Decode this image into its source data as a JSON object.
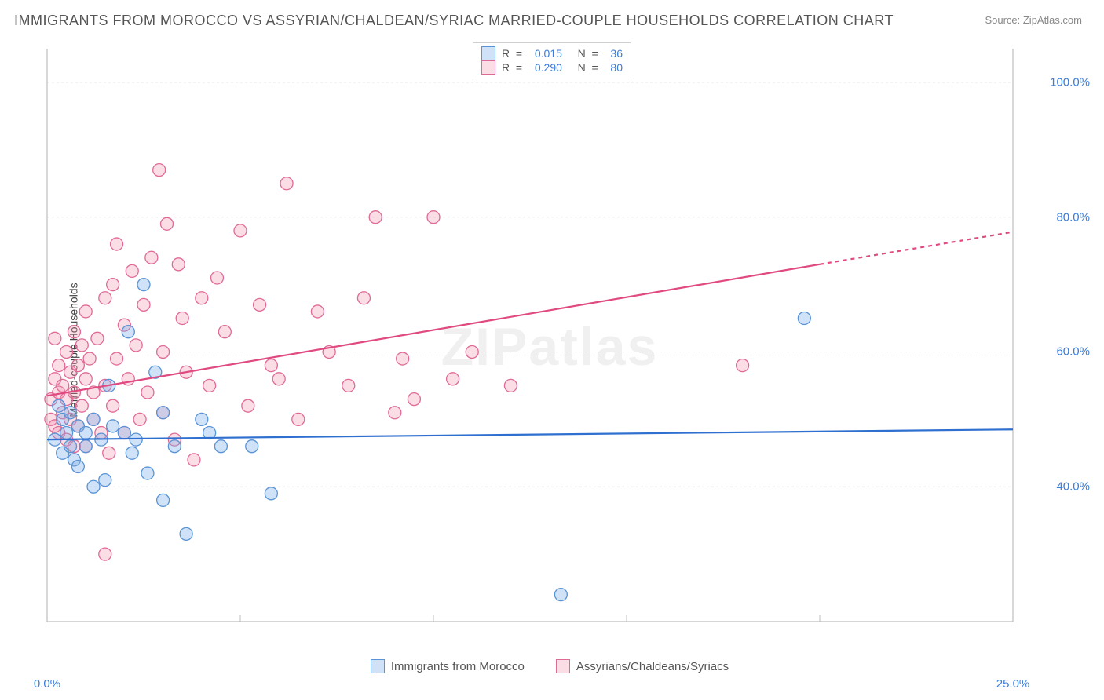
{
  "title": "IMMIGRANTS FROM MOROCCO VS ASSYRIAN/CHALDEAN/SYRIAC MARRIED-COUPLE HOUSEHOLDS CORRELATION CHART",
  "source_label": "Source: ",
  "source_name": "ZipAtlas.com",
  "watermark": "ZIPatlas",
  "ylabel": "Married-couple Households",
  "chart": {
    "type": "scatter",
    "xlim": [
      0,
      25
    ],
    "ylim": [
      20,
      105
    ],
    "xtick_labels": [
      "0.0%",
      "25.0%"
    ],
    "xtick_positions": [
      0,
      25
    ],
    "xtick_minor": [
      5,
      10,
      15,
      20
    ],
    "ytick_labels": [
      "40.0%",
      "60.0%",
      "80.0%",
      "100.0%"
    ],
    "ytick_positions": [
      40,
      60,
      80,
      100
    ],
    "grid_color": "#e5e5e5",
    "axis_color": "#bdbdbd",
    "background_color": "#ffffff",
    "tick_label_color": "#3b7dd8",
    "series": [
      {
        "name": "Immigrants from Morocco",
        "color_fill": "rgba(119,171,232,0.35)",
        "color_stroke": "#5a94d6",
        "line_color": "#2e6fd0",
        "line_width": 2.2,
        "marker_r": 8,
        "R": "0.015",
        "N": "36",
        "trend": {
          "x1": 0,
          "y1": 47.0,
          "x2": 25,
          "y2": 48.5
        },
        "points": [
          [
            0.2,
            47
          ],
          [
            0.3,
            52
          ],
          [
            0.4,
            45
          ],
          [
            0.4,
            50
          ],
          [
            0.5,
            48
          ],
          [
            0.6,
            46
          ],
          [
            0.6,
            51
          ],
          [
            0.7,
            44
          ],
          [
            0.8,
            49
          ],
          [
            0.8,
            43
          ],
          [
            1.0,
            48
          ],
          [
            1.0,
            46
          ],
          [
            1.2,
            50
          ],
          [
            1.2,
            40
          ],
          [
            1.4,
            47
          ],
          [
            1.5,
            41
          ],
          [
            1.6,
            55
          ],
          [
            1.7,
            49
          ],
          [
            2.0,
            48
          ],
          [
            2.1,
            63
          ],
          [
            2.2,
            45
          ],
          [
            2.3,
            47
          ],
          [
            2.5,
            70
          ],
          [
            2.6,
            42
          ],
          [
            2.8,
            57
          ],
          [
            3.0,
            51
          ],
          [
            3.0,
            38
          ],
          [
            3.3,
            46
          ],
          [
            3.6,
            33
          ],
          [
            4.0,
            50
          ],
          [
            4.2,
            48
          ],
          [
            4.5,
            46
          ],
          [
            5.3,
            46
          ],
          [
            5.8,
            39
          ],
          [
            13.3,
            24
          ],
          [
            19.6,
            65
          ]
        ]
      },
      {
        "name": "Assyrians/Chaldeans/Syriacs",
        "color_fill": "rgba(242,142,173,0.3)",
        "color_stroke": "#e06a96",
        "line_color": "#e04a80",
        "line_width": 2.2,
        "marker_r": 8,
        "R": "0.290",
        "N": "80",
        "trend": {
          "x1": 0,
          "y1": 53.5,
          "x2": 20,
          "y2": 73.0,
          "x_dash_from": 20,
          "x2_full": 25,
          "y2_full": 77.8
        },
        "points": [
          [
            0.1,
            53
          ],
          [
            0.1,
            50
          ],
          [
            0.2,
            56
          ],
          [
            0.2,
            49
          ],
          [
            0.2,
            62
          ],
          [
            0.3,
            54
          ],
          [
            0.3,
            58
          ],
          [
            0.3,
            48
          ],
          [
            0.4,
            55
          ],
          [
            0.4,
            51
          ],
          [
            0.5,
            60
          ],
          [
            0.5,
            47
          ],
          [
            0.5,
            53
          ],
          [
            0.6,
            57
          ],
          [
            0.6,
            50
          ],
          [
            0.7,
            63
          ],
          [
            0.7,
            46
          ],
          [
            0.7,
            54
          ],
          [
            0.8,
            58
          ],
          [
            0.8,
            49
          ],
          [
            0.9,
            61
          ],
          [
            0.9,
            52
          ],
          [
            1.0,
            56
          ],
          [
            1.0,
            46
          ],
          [
            1.0,
            66
          ],
          [
            1.1,
            59
          ],
          [
            1.2,
            50
          ],
          [
            1.2,
            54
          ],
          [
            1.3,
            62
          ],
          [
            1.4,
            48
          ],
          [
            1.5,
            68
          ],
          [
            1.5,
            55
          ],
          [
            1.6,
            45
          ],
          [
            1.7,
            70
          ],
          [
            1.7,
            52
          ],
          [
            1.8,
            59
          ],
          [
            1.8,
            76
          ],
          [
            2.0,
            48
          ],
          [
            2.0,
            64
          ],
          [
            2.1,
            56
          ],
          [
            2.2,
            72
          ],
          [
            2.3,
            61
          ],
          [
            2.4,
            50
          ],
          [
            2.5,
            67
          ],
          [
            2.6,
            54
          ],
          [
            2.7,
            74
          ],
          [
            2.9,
            87
          ],
          [
            3.0,
            60
          ],
          [
            3.0,
            51
          ],
          [
            3.1,
            79
          ],
          [
            3.3,
            47
          ],
          [
            3.4,
            73
          ],
          [
            3.5,
            65
          ],
          [
            3.6,
            57
          ],
          [
            3.8,
            44
          ],
          [
            4.0,
            68
          ],
          [
            4.2,
            55
          ],
          [
            4.4,
            71
          ],
          [
            4.6,
            63
          ],
          [
            5.0,
            78
          ],
          [
            5.2,
            52
          ],
          [
            5.5,
            67
          ],
          [
            5.8,
            58
          ],
          [
            6.0,
            56
          ],
          [
            6.2,
            85
          ],
          [
            6.5,
            50
          ],
          [
            7.0,
            66
          ],
          [
            7.3,
            60
          ],
          [
            7.8,
            55
          ],
          [
            8.2,
            68
          ],
          [
            8.5,
            80
          ],
          [
            9.0,
            51
          ],
          [
            9.2,
            59
          ],
          [
            9.5,
            53
          ],
          [
            10.0,
            80
          ],
          [
            10.5,
            56
          ],
          [
            11.0,
            60
          ],
          [
            12.0,
            55
          ],
          [
            18.0,
            58
          ],
          [
            1.5,
            30
          ]
        ]
      }
    ]
  },
  "legend_top": {
    "rows": [
      {
        "series_idx": 0,
        "r_label": "R  =  ",
        "n_label": "   N  =  "
      },
      {
        "series_idx": 1,
        "r_label": "R  =  ",
        "n_label": "   N  =  "
      }
    ]
  }
}
